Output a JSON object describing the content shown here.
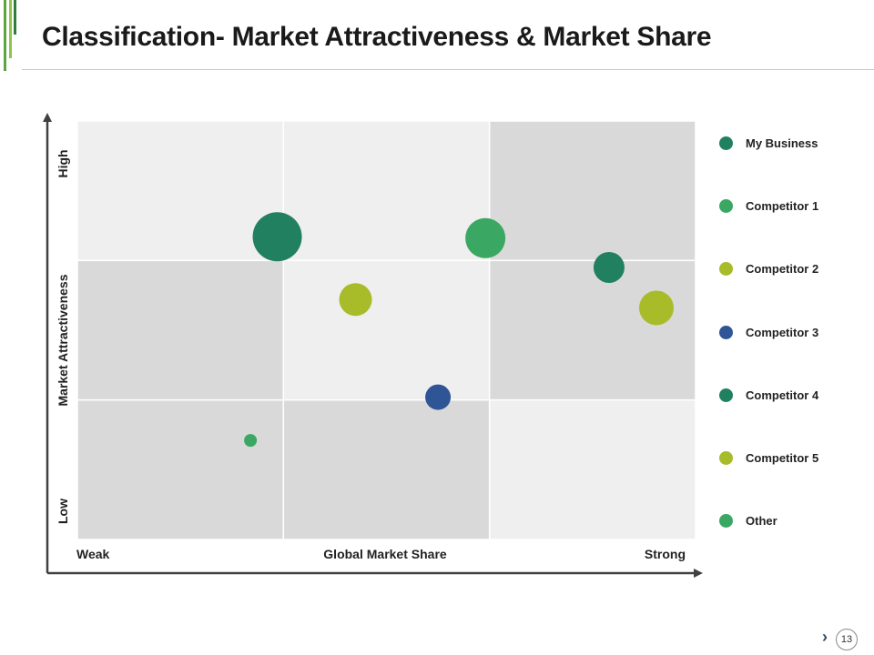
{
  "header": {
    "title": "Classification- Market Attractiveness & Market Share"
  },
  "page": {
    "number": "13"
  },
  "chart_data": {
    "type": "scatter",
    "variant": "bubble-matrix",
    "x_axis": {
      "label": "Global Market Share",
      "low_label": "Weak",
      "high_label": "Strong",
      "range": [
        0,
        3
      ]
    },
    "y_axis": {
      "label": "Market Attractiveness",
      "low_label": "Low",
      "high_label": "High",
      "range": [
        0,
        3
      ]
    },
    "grid": "3x3",
    "cell_shading": [
      [
        "#efefef",
        "#efefef",
        "#d9d9d9"
      ],
      [
        "#d9d9d9",
        "#efefef",
        "#d9d9d9"
      ],
      [
        "#d9d9d9",
        "#d9d9d9",
        "#efefef"
      ]
    ],
    "series": [
      {
        "name": "My Business",
        "color": "#208060",
        "x": 0.97,
        "y": 2.17,
        "size": 27
      },
      {
        "name": "Competitor 1",
        "color": "#3aa862",
        "x": 1.98,
        "y": 2.16,
        "size": 22
      },
      {
        "name": "Competitor 2",
        "color": "#a8bc2a",
        "x": 1.35,
        "y": 1.72,
        "size": 18
      },
      {
        "name": "Competitor 3",
        "color": "#2f5596",
        "x": 1.75,
        "y": 1.02,
        "size": 14
      },
      {
        "name": "Competitor 4",
        "color": "#208060",
        "x": 2.58,
        "y": 1.95,
        "size": 17
      },
      {
        "name": "Competitor 5",
        "color": "#a8bc2a",
        "x": 2.81,
        "y": 1.66,
        "size": 19
      },
      {
        "name": "Other",
        "color": "#3aa862",
        "x": 0.84,
        "y": 0.71,
        "size": 7
      }
    ],
    "legend_position": "right"
  }
}
